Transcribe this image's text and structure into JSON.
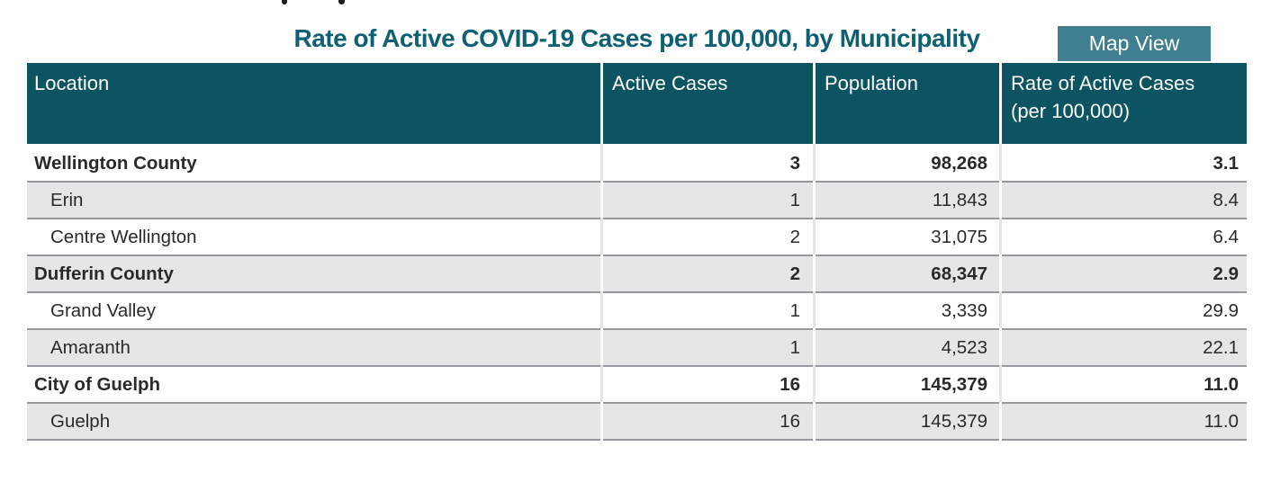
{
  "page": {
    "title": "Rate of Active COVID-19 Cases per 100,000, by Municipality",
    "map_view_button": "Map View"
  },
  "table": {
    "columns": [
      {
        "label": "Location",
        "sublabel": ""
      },
      {
        "label": "Active Cases",
        "sublabel": ""
      },
      {
        "label": "Population",
        "sublabel": ""
      },
      {
        "label": "Rate of Active Cases",
        "sublabel": "(per 100,000)"
      }
    ],
    "rows": [
      {
        "location": "Wellington County",
        "active_cases": "3",
        "population": "98,268",
        "rate": "3.1",
        "level": "county",
        "shaded": false
      },
      {
        "location": "Erin",
        "active_cases": "1",
        "population": "11,843",
        "rate": "8.4",
        "level": "municipality",
        "shaded": true
      },
      {
        "location": "Centre Wellington",
        "active_cases": "2",
        "population": "31,075",
        "rate": "6.4",
        "level": "municipality",
        "shaded": false
      },
      {
        "location": "Dufferin County",
        "active_cases": "2",
        "population": "68,347",
        "rate": "2.9",
        "level": "county",
        "shaded": true
      },
      {
        "location": "Grand Valley",
        "active_cases": "1",
        "population": "3,339",
        "rate": "29.9",
        "level": "municipality",
        "shaded": false
      },
      {
        "location": "Amaranth",
        "active_cases": "1",
        "population": "4,523",
        "rate": "22.1",
        "level": "municipality",
        "shaded": true
      },
      {
        "location": "City of Guelph",
        "active_cases": "16",
        "population": "145,379",
        "rate": "11.0",
        "level": "county",
        "shaded": false
      },
      {
        "location": "Guelph",
        "active_cases": "16",
        "population": "145,379",
        "rate": "11.0",
        "level": "municipality",
        "shaded": true
      }
    ]
  },
  "colors": {
    "header_bg": "#0d5462",
    "title_text": "#0e6175",
    "button_bg": "#3f7f90",
    "button_text": "#ffffff",
    "row_shaded_bg": "#e6e6e6",
    "row_white_bg": "#ffffff",
    "row_rule": "#98979d",
    "body_text": "#2b2a29"
  }
}
